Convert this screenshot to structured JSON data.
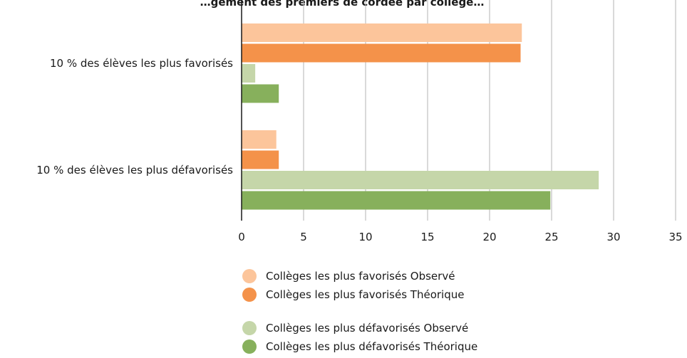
{
  "chart_data": {
    "type": "bar",
    "orientation": "horizontal",
    "title": "…gement des premiers de cordée par collège…",
    "categories": [
      "10 % des élèves les plus favorisés",
      "10 % des élèves les plus défavorisés"
    ],
    "series": [
      {
        "name": "Collèges les plus favorisés Observé",
        "values": [
          22.6,
          2.8
        ],
        "color": "#fcc59b"
      },
      {
        "name": "Collèges les plus favorisés Théorique",
        "values": [
          22.5,
          3.0
        ],
        "color": "#f4924a"
      },
      {
        "name": "Collèges les plus défavorisés Observé",
        "values": [
          1.1,
          28.8
        ],
        "color": "#c5d6a9"
      },
      {
        "name": "Collèges les plus défavorisés Théorique",
        "values": [
          3.0,
          24.9
        ],
        "color": "#87b05c"
      }
    ],
    "xlim": [
      0,
      35
    ],
    "x_ticks": [
      0,
      5,
      10,
      15,
      20,
      25,
      30,
      35
    ],
    "grid": true,
    "legend_position": "bottom-center"
  }
}
